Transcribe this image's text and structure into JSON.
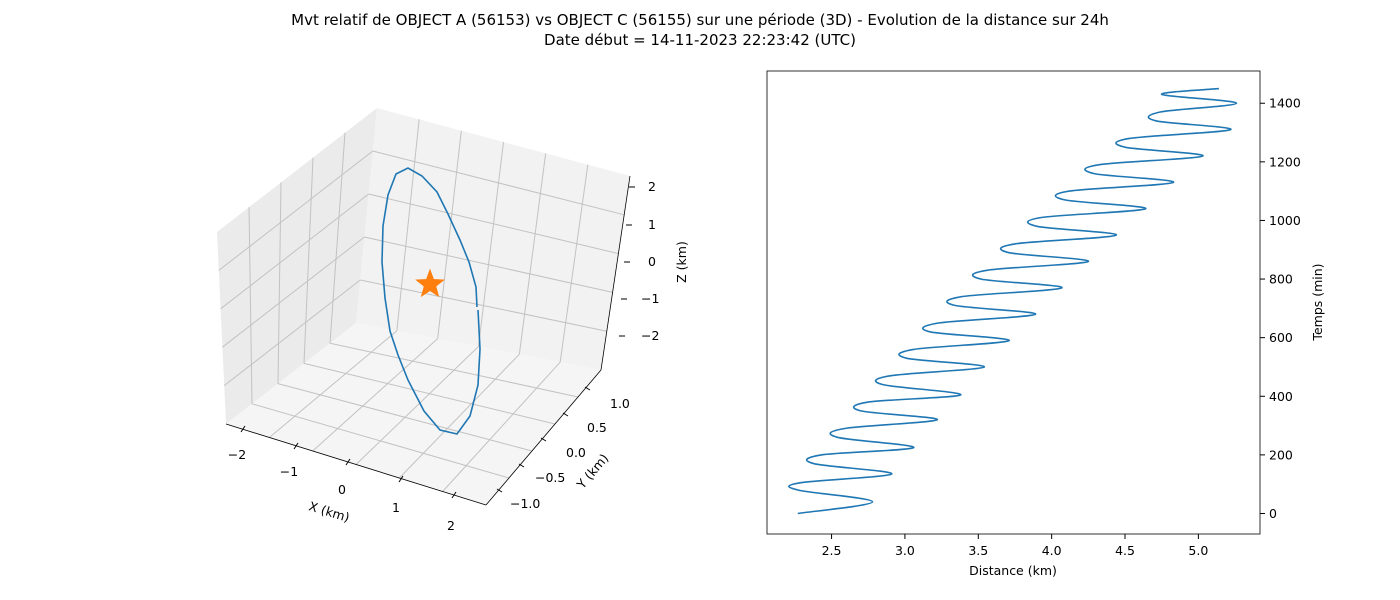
{
  "figure": {
    "title_line1": "Mvt relatif de OBJECT A (56153) vs OBJECT C (56155) sur une période (3D) - Evolution de la distance sur 24h",
    "title_line2": "Date début = 14-11-2023 22:23:42 (UTC)"
  },
  "colors": {
    "series": "#1f77b4",
    "marker": "#ff7f0e"
  },
  "chart_data": [
    {
      "type": "line3d",
      "xlabel": "X (km)",
      "ylabel": "Y (km)",
      "zlabel": "Z (km)",
      "xticks": [
        "−2",
        "−1",
        "0",
        "1",
        "2"
      ],
      "yticks": [
        "−1.0",
        "−0.5",
        "0.0",
        "0.5",
        "1.0"
      ],
      "zticks": [
        "−2",
        "−1",
        "0",
        "1",
        "2"
      ],
      "grid": true,
      "marker": {
        "shape": "star",
        "x": 0,
        "y": 0,
        "z": 0
      },
      "trajectory_shape": "closed ellipse, X amplitude ≈ 2.2 km, Y amplitude ≈ 1.1 km, Z amplitude ≈ 2.2 km"
    },
    {
      "type": "line",
      "xlabel": "Distance (km)",
      "ylabel": "Temps (min)",
      "xticks": [
        "2.5",
        "3.0",
        "3.5",
        "4.0",
        "4.5",
        "5.0"
      ],
      "yticks": [
        "0",
        "200",
        "400",
        "600",
        "800",
        "1000",
        "1200",
        "1400"
      ],
      "xlim": [
        2.06,
        5.42
      ],
      "ylim": [
        -70,
        1510
      ],
      "grid": false,
      "y_axis_position": "right",
      "series": [
        {
          "x": [
            2.27,
            2.78,
            2.27,
            2.29,
            2.91,
            2.38,
            2.43,
            3.06,
            2.54,
            2.59,
            3.22,
            2.7,
            2.75,
            3.38,
            2.85,
            2.9,
            3.54,
            3.01,
            3.06,
            3.71,
            3.17,
            3.23,
            3.89,
            3.34,
            3.39,
            4.07,
            3.52,
            3.56,
            4.25,
            3.71,
            3.75,
            4.44,
            3.9,
            3.93,
            4.64,
            4.09,
            4.12,
            4.83,
            4.29,
            4.32,
            5.03,
            4.5,
            4.53,
            5.22,
            4.71,
            4.74,
            5.26,
            4.75,
            5.14
          ],
          "y": [
            0,
            40,
            80,
            105,
            135,
            170,
            200,
            225,
            260,
            290,
            320,
            350,
            380,
            405,
            440,
            470,
            500,
            530,
            560,
            590,
            620,
            650,
            680,
            710,
            740,
            770,
            800,
            830,
            860,
            890,
            920,
            950,
            980,
            1010,
            1040,
            1070,
            1100,
            1130,
            1160,
            1190,
            1220,
            1250,
            1280,
            1310,
            1340,
            1370,
            1400,
            1430,
            1450
          ]
        }
      ]
    }
  ]
}
